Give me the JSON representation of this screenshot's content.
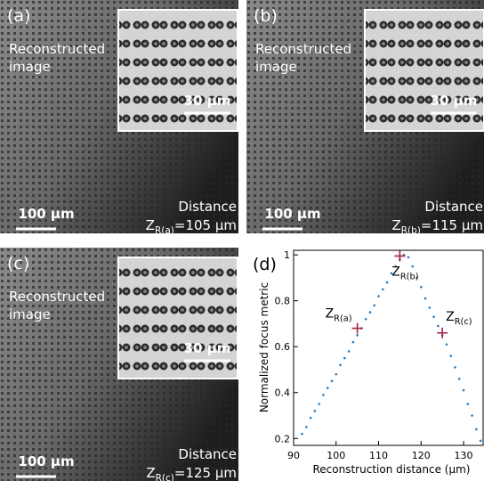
{
  "panels": [
    {
      "label": "(a)",
      "caption": [
        "Reconstructed",
        "image"
      ],
      "inset_scale": "30 µm",
      "scale": "100 µm",
      "distance_label": "Distance",
      "z": "Z",
      "z_sub": "R(a)",
      "z_value": "=105 µm"
    },
    {
      "label": "(b)",
      "caption": [
        "Reconstructed",
        "image"
      ],
      "inset_scale": "30 µm",
      "scale": "100 µm",
      "distance_label": "Distance",
      "z": "Z",
      "z_sub": "R(b)",
      "z_value": "=115 µm"
    },
    {
      "label": "(c)",
      "caption": [
        "Reconstructed",
        "image"
      ],
      "inset_scale": "30 µm",
      "scale": "100 µm",
      "distance_label": "Distance",
      "z": "Z",
      "z_sub": "R(c)",
      "z_value": "=125 µm"
    }
  ],
  "chart_data": {
    "type": "line",
    "panel_label": "(d)",
    "xlabel": "Reconstruction distance (µm)",
    "ylabel": "Normalized focus metric",
    "xlim": [
      90,
      134.6
    ],
    "ylim": [
      0.17,
      1.02
    ],
    "xticks": [
      90,
      100,
      110,
      120,
      130
    ],
    "yticks": [
      0.2,
      0.4,
      0.6,
      0.8,
      1
    ],
    "series": [
      {
        "color": "#2b7bba",
        "style": "dotted",
        "x": [
          92,
          93,
          94,
          95,
          96,
          97,
          98,
          99,
          100,
          101,
          102,
          103,
          104,
          105,
          106,
          107,
          108,
          109,
          110,
          111,
          112,
          113,
          114,
          115,
          116,
          117,
          118,
          119,
          120,
          121,
          122,
          123,
          124,
          125,
          126,
          127,
          128,
          129,
          130,
          131,
          132,
          133,
          134
        ],
        "values": [
          0.22,
          0.25,
          0.29,
          0.32,
          0.35,
          0.39,
          0.42,
          0.45,
          0.48,
          0.52,
          0.55,
          0.58,
          0.62,
          0.65,
          0.68,
          0.72,
          0.75,
          0.78,
          0.82,
          0.85,
          0.88,
          0.92,
          0.95,
          0.98,
          1.0,
          0.99,
          0.95,
          0.9,
          0.86,
          0.81,
          0.77,
          0.73,
          0.69,
          0.65,
          0.61,
          0.56,
          0.51,
          0.46,
          0.41,
          0.35,
          0.3,
          0.24,
          0.19
        ]
      },
      {
        "color": "#a3243f",
        "style": "plus",
        "x": [
          105,
          115,
          125
        ],
        "values": [
          0.68,
          0.995,
          0.66
        ],
        "annotations": [
          {
            "text": "Z",
            "subscript": "R(a)"
          },
          {
            "text": "Z",
            "subscript": "R(b)"
          },
          {
            "text": "Z",
            "subscript": "R(c)"
          }
        ]
      }
    ]
  }
}
